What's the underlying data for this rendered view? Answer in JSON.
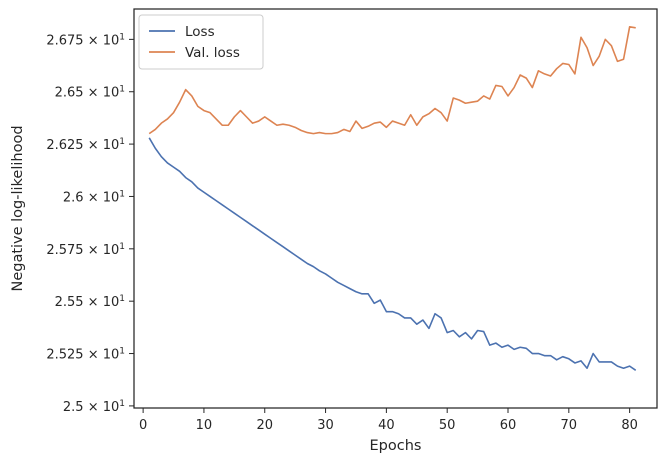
{
  "chart_data": {
    "type": "line",
    "xlabel": "Epochs",
    "ylabel": "Negative log-likelihood",
    "xlim": [
      -1.5,
      84.5
    ],
    "ylim": [
      24.99,
      26.895
    ],
    "x_ticks": [
      0,
      10,
      20,
      30,
      40,
      50,
      60,
      70,
      80
    ],
    "y_ticks": [
      {
        "value": 25.0,
        "mantissa": "2.5"
      },
      {
        "value": 25.25,
        "mantissa": "2.525"
      },
      {
        "value": 25.5,
        "mantissa": "2.55"
      },
      {
        "value": 25.75,
        "mantissa": "2.575"
      },
      {
        "value": 26.0,
        "mantissa": "2.6"
      },
      {
        "value": 26.25,
        "mantissa": "2.625"
      },
      {
        "value": 26.5,
        "mantissa": "2.65"
      },
      {
        "value": 26.75,
        "mantissa": "2.675"
      }
    ],
    "y_tick_suffix": {
      "times": "×",
      "base": "10",
      "exponent": "1"
    },
    "grid": false,
    "legend_position": "top-left",
    "x": [
      1,
      2,
      3,
      4,
      5,
      6,
      7,
      8,
      9,
      10,
      11,
      12,
      13,
      14,
      15,
      16,
      17,
      18,
      19,
      20,
      21,
      22,
      23,
      24,
      25,
      26,
      27,
      28,
      29,
      30,
      31,
      32,
      33,
      34,
      35,
      36,
      37,
      38,
      39,
      40,
      41,
      42,
      43,
      44,
      45,
      46,
      47,
      48,
      49,
      50,
      51,
      52,
      53,
      54,
      55,
      56,
      57,
      58,
      59,
      60,
      61,
      62,
      63,
      64,
      65,
      66,
      67,
      68,
      69,
      70,
      71,
      72,
      73,
      74,
      75,
      76,
      77,
      78,
      79,
      80,
      81
    ],
    "series": [
      {
        "name": "Loss",
        "color": "#4c72b0",
        "values": [
          26.28,
          26.23,
          26.19,
          26.16,
          26.14,
          26.12,
          26.09,
          26.07,
          26.04,
          26.02,
          26.0,
          25.98,
          25.96,
          25.94,
          25.92,
          25.9,
          25.88,
          25.86,
          25.84,
          25.82,
          25.8,
          25.78,
          25.76,
          25.74,
          25.72,
          25.7,
          25.68,
          25.665,
          25.645,
          25.63,
          25.61,
          25.59,
          25.575,
          25.56,
          25.545,
          25.535,
          25.535,
          25.49,
          25.505,
          25.45,
          25.45,
          25.44,
          25.42,
          25.42,
          25.39,
          25.41,
          25.37,
          25.44,
          25.42,
          25.35,
          25.36,
          25.33,
          25.35,
          25.32,
          25.36,
          25.355,
          25.29,
          25.3,
          25.28,
          25.29,
          25.27,
          25.28,
          25.275,
          25.25,
          25.25,
          25.24,
          25.24,
          25.22,
          25.235,
          25.225,
          25.205,
          25.215,
          25.18,
          25.25,
          25.21,
          25.21,
          25.21,
          25.19,
          25.18,
          25.19,
          25.17
        ]
      },
      {
        "name": "Val. loss",
        "color": "#dd8452",
        "values": [
          26.3,
          26.32,
          26.35,
          26.37,
          26.4,
          26.45,
          26.51,
          26.48,
          26.43,
          26.41,
          26.4,
          26.37,
          26.34,
          26.34,
          26.38,
          26.41,
          26.38,
          26.35,
          26.36,
          26.38,
          26.36,
          26.34,
          26.345,
          26.34,
          26.33,
          26.315,
          26.305,
          26.3,
          26.305,
          26.3,
          26.3,
          26.305,
          26.32,
          26.31,
          26.36,
          26.325,
          26.335,
          26.35,
          26.355,
          26.33,
          26.36,
          26.35,
          26.34,
          26.39,
          26.34,
          26.38,
          26.395,
          26.42,
          26.4,
          26.36,
          26.47,
          26.46,
          26.445,
          26.45,
          26.455,
          26.48,
          26.465,
          26.53,
          26.525,
          26.48,
          26.52,
          26.58,
          26.565,
          26.52,
          26.6,
          26.585,
          26.575,
          26.61,
          26.635,
          26.63,
          26.585,
          26.76,
          26.71,
          26.625,
          26.67,
          26.75,
          26.72,
          26.645,
          26.655,
          26.81,
          26.805
        ]
      }
    ]
  }
}
